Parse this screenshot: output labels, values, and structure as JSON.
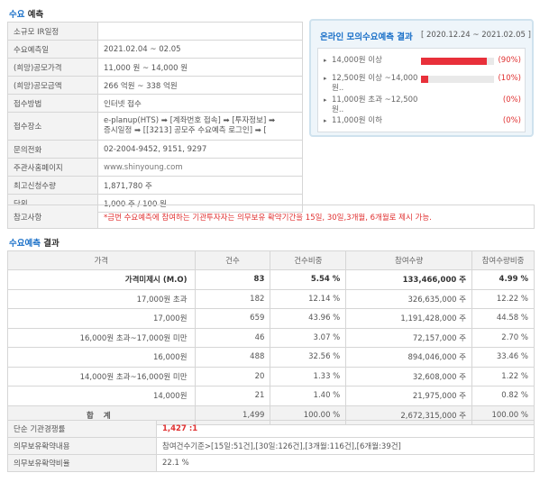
{
  "demand_forecast": {
    "title": "예측",
    "title_prefix": "수요",
    "rows": [
      {
        "label": "소규모 IR일정",
        "value": ""
      },
      {
        "label": "수요예측일",
        "value": "2021.02.04 ~ 02.05"
      },
      {
        "label": "(희망)공모가격",
        "value": "11,000 원 ~ 14,000 원"
      },
      {
        "label": "(희망)공모금액",
        "value": "266 억원 ~ 338 억원"
      },
      {
        "label": "접수방법",
        "value": "인터넷 접수"
      },
      {
        "label": "접수장소",
        "value_line1": "e-planup(HTS) ➡ [계좌번호 접속] ➡ [투자정보] ➡",
        "value_line2": "증시일정 ➡ [[3213] 공모주 수요예측 로그인] ➡ ["
      },
      {
        "label": "문의전화",
        "value": "02-2004-9452, 9151, 9297"
      },
      {
        "label": "주관사홈페이지",
        "value": "www.shinyoung.com"
      },
      {
        "label": "최고신청수량",
        "value": "1,871,780 주"
      },
      {
        "label": "단위",
        "value": "1,000 주 / 100 원"
      }
    ]
  },
  "mock_forecast": {
    "title": "온라인 모의수요예측 결과",
    "period": "[ 2020.12.24 ~ 2021.02.05 ]",
    "rows": [
      {
        "label": "14,000원 이상",
        "percent": 90,
        "percent_label": "(90%)"
      },
      {
        "label": "12,500원 이상 ~14,000원..",
        "percent": 10,
        "percent_label": "(10%)"
      },
      {
        "label": "11,000원 초과 ~12,500원..",
        "percent": 0,
        "percent_label": "(0%)"
      },
      {
        "label": "11,000원 이하",
        "percent": 0,
        "percent_label": "(0%)"
      }
    ],
    "bar_color": "#e8303a"
  },
  "reference": {
    "label": "참고사항",
    "text": "*금번 수요예측에 참여하는 기관투자자는 의무보유 확약기간을 15일, 30일,3개월, 6개월로 제시 가능."
  },
  "result": {
    "title_prefix": "수요예측",
    "title": "결과",
    "headers": [
      "가격",
      "건수",
      "건수비중",
      "참여수량",
      "참여수량비중"
    ],
    "rows": [
      [
        "가격미제시 (M.O)",
        "83",
        "5.54 %",
        "133,466,000 주",
        "4.99 %"
      ],
      [
        "17,000원 초과",
        "182",
        "12.14 %",
        "326,635,000 주",
        "12.22 %"
      ],
      [
        "17,000원",
        "659",
        "43.96 %",
        "1,191,428,000 주",
        "44.58 %"
      ],
      [
        "16,000원 초과~17,000원 미만",
        "46",
        "3.07 %",
        "72,157,000 주",
        "2.70 %"
      ],
      [
        "16,000원",
        "488",
        "32.56 %",
        "894,046,000 주",
        "33.46 %"
      ],
      [
        "14,000원 초과~16,000원 미만",
        "20",
        "1.33 %",
        "32,608,000 주",
        "1.22 %"
      ],
      [
        "14,000원",
        "21",
        "1.40 %",
        "21,975,000 주",
        "0.82 %"
      ]
    ],
    "total": [
      "합 계",
      "1,499",
      "100.00 %",
      "2,672,315,000 주",
      "100.00 %"
    ]
  },
  "summary": {
    "rows": [
      {
        "label": "단순 기관경쟁률",
        "value": "1,427 :1"
      },
      {
        "label": "의무보유확약내용",
        "value": "참여건수기준>[15일:51건],[30일:126건],[3개월:116건],[6개월:39건]"
      },
      {
        "label": "의무보유확약비율",
        "value": "22.1 %"
      }
    ]
  }
}
